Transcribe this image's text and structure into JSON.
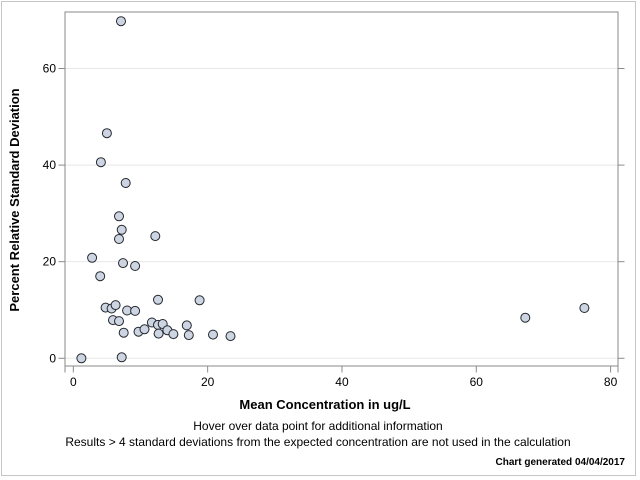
{
  "figure": {
    "background": "#ffffff",
    "border_color": "#c6c6c6"
  },
  "chart_data": {
    "type": "scatter",
    "title": "",
    "xlabel": "Mean Concentration in ug/L",
    "ylabel": "Percent Relative Standard Deviation",
    "xticks": [
      0,
      20,
      40,
      60,
      80
    ],
    "yticks": [
      0,
      20,
      40,
      60
    ],
    "xlim": [
      -1.24,
      81.1
    ],
    "ylim": [
      -1.6,
      71.7
    ],
    "grid": "horizontal-only",
    "legend": "none",
    "frame_color": "#8a8a8a",
    "gridline_color": "#e8e8e8",
    "marker": {
      "shape": "circle",
      "radius_px": 4.5,
      "fill": "#cdd5e2",
      "stroke": "#23272e"
    },
    "points": [
      [
        1.2,
        0.0
      ],
      [
        2.8,
        20.8
      ],
      [
        4.0,
        17.0
      ],
      [
        4.1,
        40.6
      ],
      [
        4.8,
        10.5
      ],
      [
        5.0,
        46.6
      ],
      [
        5.7,
        10.3
      ],
      [
        5.9,
        7.9
      ],
      [
        6.3,
        11.0
      ],
      [
        6.8,
        29.4
      ],
      [
        6.8,
        24.7
      ],
      [
        6.8,
        7.7
      ],
      [
        7.1,
        69.8
      ],
      [
        7.2,
        26.6
      ],
      [
        7.2,
        0.2
      ],
      [
        7.4,
        19.7
      ],
      [
        7.5,
        5.3
      ],
      [
        7.8,
        36.3
      ],
      [
        8.0,
        9.9
      ],
      [
        9.2,
        19.1
      ],
      [
        9.2,
        9.8
      ],
      [
        9.7,
        5.5
      ],
      [
        10.6,
        6.0
      ],
      [
        11.7,
        7.4
      ],
      [
        12.2,
        25.3
      ],
      [
        12.6,
        12.1
      ],
      [
        12.6,
        6.9
      ],
      [
        12.7,
        5.1
      ],
      [
        13.3,
        7.1
      ],
      [
        14.0,
        5.8
      ],
      [
        14.9,
        5.0
      ],
      [
        16.9,
        6.8
      ],
      [
        17.2,
        4.8
      ],
      [
        18.8,
        12.0
      ],
      [
        20.8,
        4.9
      ],
      [
        23.4,
        4.6
      ],
      [
        67.3,
        8.4
      ],
      [
        76.1,
        10.4
      ]
    ]
  },
  "footnotes": {
    "line1": "Hover over data point for additional information",
    "line2": "Results > 4 standard deviations from the expected concentration are not used in the calculation",
    "generated": "Chart generated 04/04/2017"
  }
}
